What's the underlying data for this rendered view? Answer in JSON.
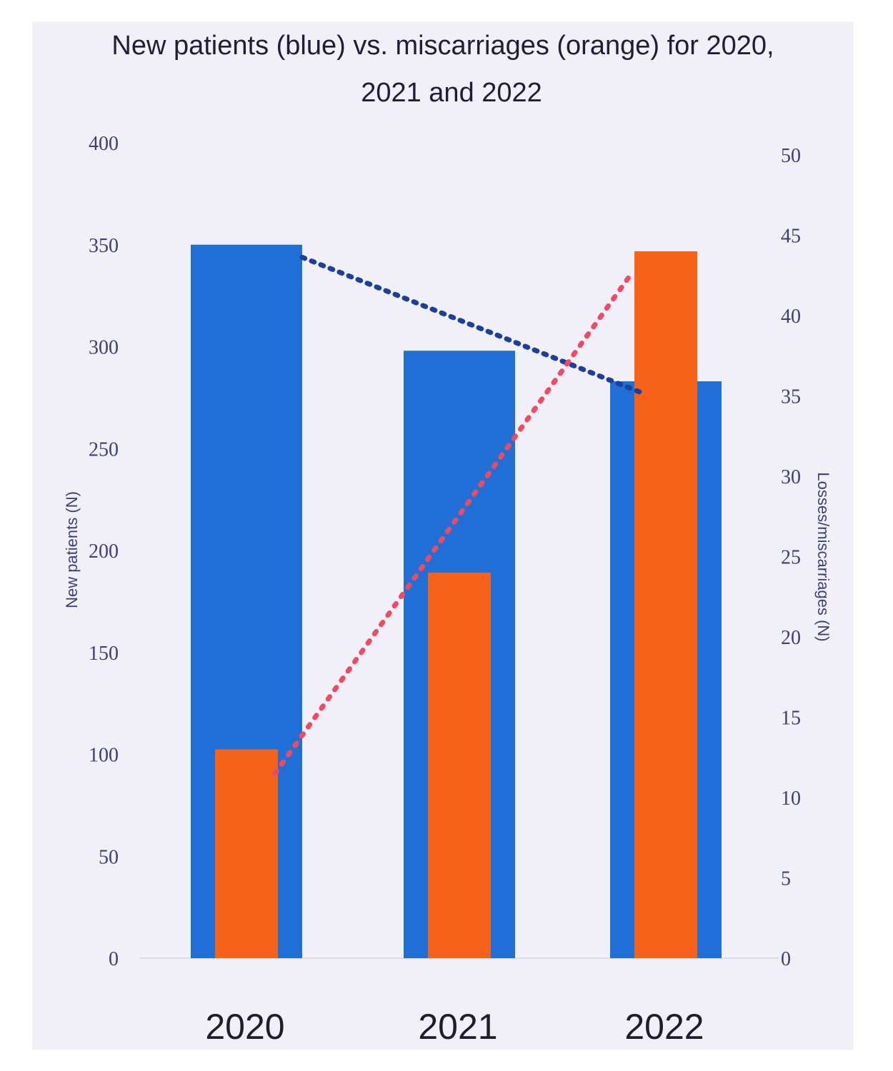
{
  "chart_data": {
    "type": "bar",
    "title_lines": [
      "New patients (blue) vs. miscarriages (orange) for 2020,",
      "2021 and 2022"
    ],
    "categories": [
      "2020",
      "2021",
      "2022"
    ],
    "series": [
      {
        "values": [
          350,
          298,
          283
        ],
        "color": "#1f6fd6",
        "axis": "left",
        "trendline_color": "#1c3f9e"
      },
      {
        "values": [
          13,
          24,
          44
        ],
        "color": "#f6621a",
        "axis": "right",
        "trendline_color": "#ee4a63"
      }
    ],
    "ylabel": "New patients (N)",
    "y2label": "Losses/miscarriages (N)",
    "ylim": [
      0,
      400
    ],
    "y2lim": [
      0,
      50
    ],
    "yticks": [
      0,
      50,
      100,
      150,
      200,
      250,
      300,
      350,
      400
    ],
    "y2ticks": [
      0,
      5,
      10,
      15,
      20,
      25,
      30,
      35,
      40,
      45,
      50
    ],
    "trendlines": "dotted",
    "grid": false,
    "legend": "none"
  }
}
